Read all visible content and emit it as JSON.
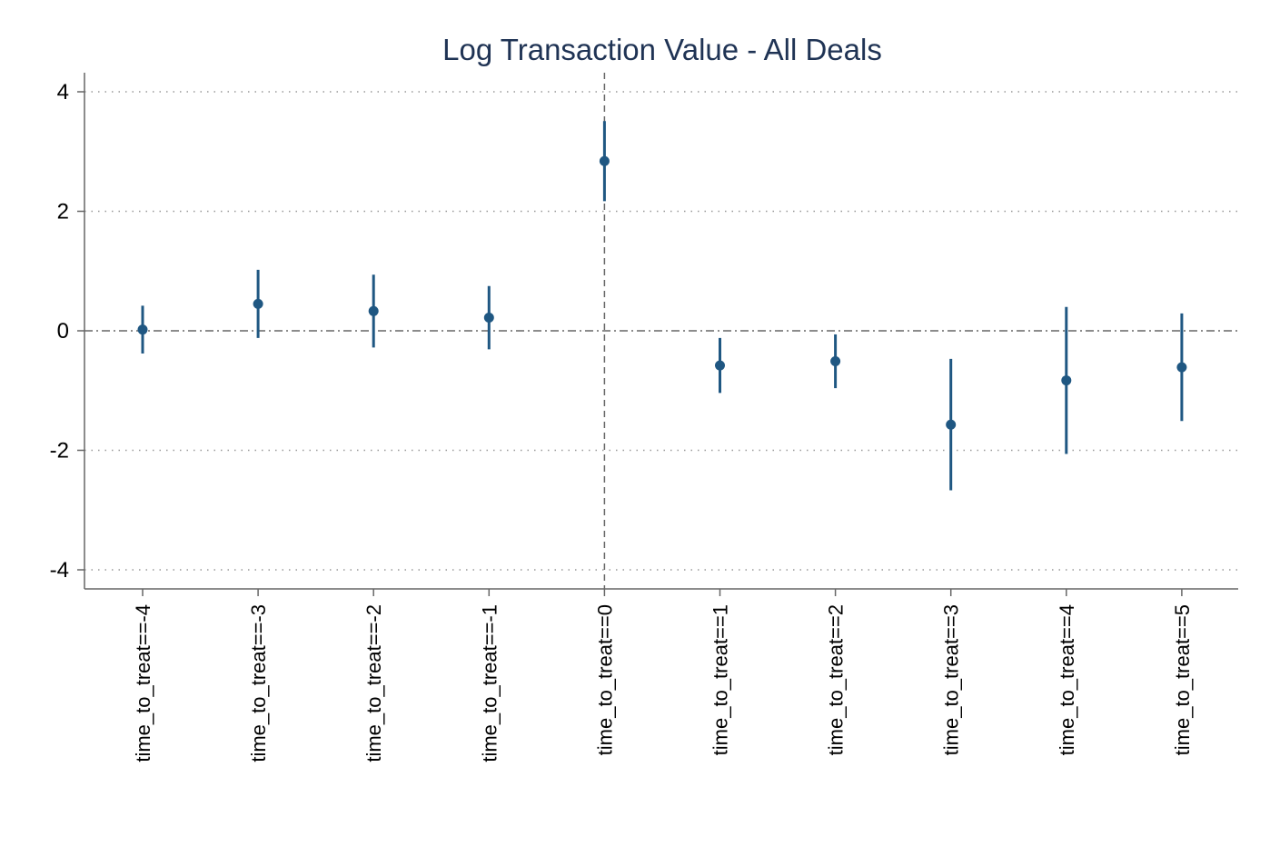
{
  "chart_data": {
    "type": "scatter",
    "title": "Log Transaction Value - All Deals",
    "xlabel": "",
    "ylabel": "",
    "categories": [
      "time_to_treat==-4",
      "time_to_treat==-3",
      "time_to_treat==-2",
      "time_to_treat==-1",
      "time_to_treat==0",
      "time_to_treat==1",
      "time_to_treat==2",
      "time_to_treat==3",
      "time_to_treat==4",
      "time_to_treat==5"
    ],
    "series": [
      {
        "values": [
          0.02,
          0.45,
          0.33,
          0.22,
          2.84,
          -0.58,
          -0.51,
          -1.57,
          -0.83,
          -0.61
        ],
        "ci_lower": [
          -0.38,
          -0.12,
          -0.28,
          -0.31,
          2.17,
          -1.04,
          -0.96,
          -2.67,
          -2.06,
          -1.51
        ],
        "ci_upper": [
          0.42,
          1.02,
          0.94,
          0.75,
          3.51,
          -0.12,
          -0.06,
          -0.47,
          0.4,
          0.29
        ]
      }
    ],
    "yticks": [
      "4",
      "2",
      "0",
      "-2",
      "-4"
    ],
    "ytick_values": [
      4,
      2,
      0,
      -2,
      -4
    ],
    "ylim": [
      -4.3,
      4.3
    ],
    "reference_lines": {
      "y": 0,
      "x_category": "time_to_treat==0"
    },
    "grid": true,
    "legend": "none",
    "colors": {
      "marker": "#1f5782",
      "title": "#1f3354",
      "axis": "#666666"
    }
  }
}
